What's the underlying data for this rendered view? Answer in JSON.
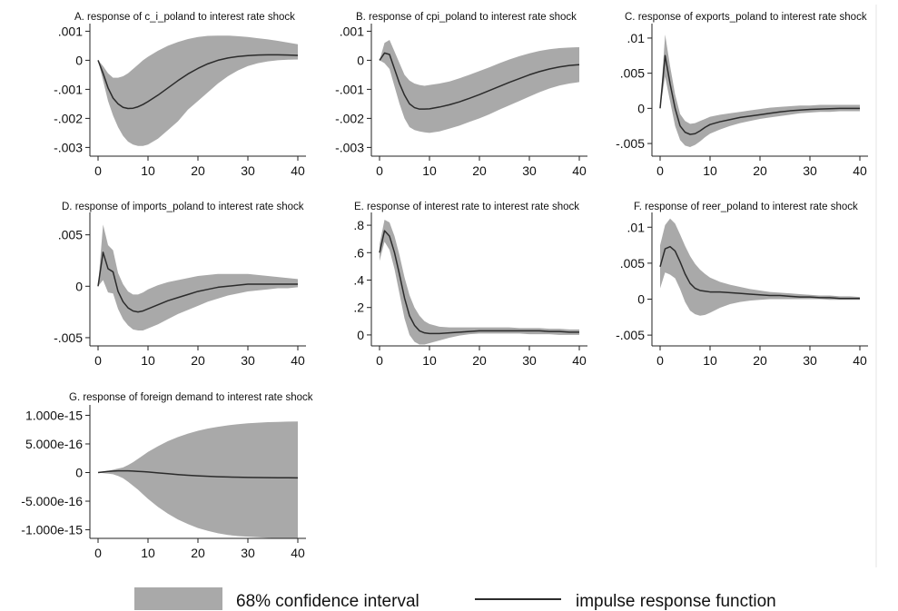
{
  "colors": {
    "band": "#a9a9a9",
    "line": "#2b2b2b",
    "axis": "#222222",
    "background": "#ffffff",
    "panel_separator": "#e6e6e6"
  },
  "legend": {
    "ci_label": "68% confidence interval",
    "irf_label": "impulse response function"
  },
  "chart_data": [
    {
      "type": "area",
      "title": "A. response of c_i_poland to interest rate shock",
      "x": [
        0,
        1,
        2,
        3,
        4,
        5,
        6,
        7,
        8,
        9,
        10,
        12,
        14,
        16,
        18,
        20,
        22,
        24,
        26,
        28,
        30,
        32,
        34,
        36,
        38,
        40
      ],
      "xticks": [
        0,
        10,
        20,
        30,
        40
      ],
      "xticklabels": [
        "0",
        "10",
        "20",
        "30",
        "40"
      ],
      "yticks": [
        -0.003,
        -0.002,
        -0.001,
        0,
        0.001
      ],
      "yticklabels": [
        "-.003",
        "-.002",
        "-.001",
        "0",
        ".001"
      ],
      "xlim": [
        0,
        40
      ],
      "ylim": [
        -0.0033,
        0.0012
      ],
      "irf": [
        0,
        -0.00045,
        -0.00095,
        -0.0013,
        -0.0015,
        -0.00162,
        -0.00166,
        -0.00165,
        -0.0016,
        -0.00152,
        -0.00142,
        -0.0012,
        -0.00095,
        -0.0007,
        -0.00047,
        -0.00028,
        -0.00012,
        0,
        8e-05,
        0.00013,
        0.00016,
        0.00018,
        0.00019,
        0.00019,
        0.00018,
        0.00017
      ],
      "ci_upper": [
        0,
        -0.0002,
        -0.00045,
        -0.0006,
        -0.0006,
        -0.00055,
        -0.00045,
        -0.0003,
        -0.00015,
        0,
        0.00012,
        0.00033,
        0.0005,
        0.00063,
        0.00073,
        0.0008,
        0.00084,
        0.00085,
        0.00085,
        0.00083,
        0.0008,
        0.00076,
        0.00072,
        0.00067,
        0.00061,
        0.00055
      ],
      "ci_lower": [
        0,
        -0.0007,
        -0.0014,
        -0.0019,
        -0.0023,
        -0.0026,
        -0.0028,
        -0.0029,
        -0.00295,
        -0.00295,
        -0.0029,
        -0.0027,
        -0.0024,
        -0.0021,
        -0.0017,
        -0.0014,
        -0.0011,
        -0.0008,
        -0.00055,
        -0.00035,
        -0.0002,
        -0.0001,
        -4e-05,
        0,
        2e-05,
        3e-05
      ]
    },
    {
      "type": "area",
      "title": "B. response of cpi_poland to interest rate shock",
      "x": [
        0,
        1,
        2,
        3,
        4,
        5,
        6,
        7,
        8,
        9,
        10,
        12,
        14,
        16,
        18,
        20,
        22,
        24,
        26,
        28,
        30,
        32,
        34,
        36,
        38,
        40
      ],
      "xticks": [
        0,
        10,
        20,
        30,
        40
      ],
      "xticklabels": [
        "0",
        "10",
        "20",
        "30",
        "40"
      ],
      "yticks": [
        -0.003,
        -0.002,
        -0.001,
        0,
        0.001
      ],
      "yticklabels": [
        "-.003",
        "-.002",
        "-.001",
        "0",
        ".001"
      ],
      "xlim": [
        0,
        40
      ],
      "ylim": [
        -0.0033,
        0.0012
      ],
      "irf": [
        0,
        0.00025,
        0.0002,
        -0.0003,
        -0.0008,
        -0.0012,
        -0.0015,
        -0.00163,
        -0.00168,
        -0.00168,
        -0.00167,
        -0.00161,
        -0.00153,
        -0.00143,
        -0.00131,
        -0.00118,
        -0.00104,
        -0.0009,
        -0.00076,
        -0.00063,
        -0.0005,
        -0.00039,
        -0.0003,
        -0.00023,
        -0.00018,
        -0.00015
      ],
      "ci_upper": [
        0,
        0.0006,
        0.0007,
        0.0003,
        -0.0001,
        -0.0005,
        -0.0007,
        -0.0008,
        -0.00085,
        -0.00088,
        -0.00085,
        -0.0008,
        -0.00073,
        -0.00062,
        -0.0005,
        -0.00037,
        -0.00024,
        -0.0001,
        3e-05,
        0.00014,
        0.00024,
        0.00032,
        0.00038,
        0.00042,
        0.00044,
        0.00045
      ],
      "ci_lower": [
        0,
        -0.0001,
        -0.0003,
        -0.0009,
        -0.0015,
        -0.002,
        -0.0023,
        -0.0024,
        -0.00245,
        -0.00248,
        -0.0025,
        -0.00245,
        -0.00235,
        -0.00225,
        -0.00212,
        -0.002,
        -0.00186,
        -0.0017,
        -0.00155,
        -0.0014,
        -0.00125,
        -0.0011,
        -0.00097,
        -0.00087,
        -0.0008,
        -0.00075
      ]
    },
    {
      "type": "area",
      "title": "C. response of exports_poland to interest rate shock",
      "x": [
        0,
        1,
        2,
        3,
        4,
        5,
        6,
        7,
        8,
        9,
        10,
        12,
        14,
        16,
        18,
        20,
        22,
        24,
        26,
        28,
        30,
        32,
        34,
        36,
        38,
        40
      ],
      "xticks": [
        0,
        10,
        20,
        30,
        40
      ],
      "xticklabels": [
        "0",
        "10",
        "20",
        "30",
        "40"
      ],
      "yticks": [
        -0.005,
        0,
        0.005,
        0.01
      ],
      "yticklabels": [
        "-.005",
        "0",
        ".005",
        ".01"
      ],
      "xlim": [
        0,
        40
      ],
      "ylim": [
        -0.0068,
        0.0118
      ],
      "irf": [
        0,
        0.0075,
        0.0035,
        0,
        -0.0025,
        -0.0034,
        -0.0037,
        -0.0036,
        -0.0032,
        -0.0027,
        -0.0023,
        -0.0019,
        -0.0016,
        -0.0013,
        -0.0011,
        -0.0009,
        -0.0007,
        -0.0005,
        -0.00035,
        -0.00025,
        -0.00015,
        -0.0001,
        -5e-05,
        0,
        0,
        0
      ],
      "ci_upper": [
        0,
        0.0105,
        0.006,
        0.002,
        -0.0008,
        -0.0018,
        -0.0022,
        -0.0021,
        -0.0018,
        -0.0015,
        -0.0012,
        -0.0009,
        -0.0007,
        -0.0005,
        -0.0003,
        -0.0001,
        0.0001,
        0.0002,
        0.0003,
        0.0004,
        0.0004,
        0.0005,
        0.0005,
        0.0005,
        0.0005,
        0.0005
      ],
      "ci_lower": [
        0,
        0.0045,
        0.001,
        -0.0025,
        -0.0045,
        -0.0053,
        -0.0055,
        -0.0052,
        -0.0047,
        -0.0041,
        -0.0036,
        -0.003,
        -0.0025,
        -0.0021,
        -0.0018,
        -0.0015,
        -0.0013,
        -0.0011,
        -0.0009,
        -0.0007,
        -0.0006,
        -0.0005,
        -0.0005,
        -0.0004,
        -0.0004,
        -0.0004
      ]
    },
    {
      "type": "area",
      "title": "D. response of imports_poland to interest rate shock",
      "x": [
        0,
        1,
        2,
        3,
        4,
        5,
        6,
        7,
        8,
        9,
        10,
        12,
        14,
        16,
        18,
        20,
        22,
        24,
        26,
        28,
        30,
        32,
        34,
        36,
        38,
        40
      ],
      "xticks": [
        0,
        10,
        20,
        30,
        40
      ],
      "xticklabels": [
        "0",
        "10",
        "20",
        "30",
        "40"
      ],
      "yticks": [
        -0.005,
        0,
        0.005
      ],
      "yticklabels": [
        "-.005",
        "0",
        ".005"
      ],
      "xlim": [
        0,
        40
      ],
      "ylim": [
        -0.0058,
        0.007
      ],
      "irf": [
        0,
        0.0033,
        0.0017,
        0.0014,
        -0.0005,
        -0.0015,
        -0.0021,
        -0.0024,
        -0.0025,
        -0.0024,
        -0.0022,
        -0.0018,
        -0.0014,
        -0.0011,
        -0.0008,
        -0.0005,
        -0.0003,
        -0.0001,
        0,
        0.0001,
        0.0002,
        0.0002,
        0.0002,
        0.0002,
        0.0002,
        0.0002
      ],
      "ci_upper": [
        0,
        0.006,
        0.004,
        0.0035,
        0.0013,
        0.0002,
        -0.0005,
        -0.0008,
        -0.0008,
        -0.0006,
        -0.0003,
        0.0001,
        0.0004,
        0.0006,
        0.0008,
        0.001,
        0.0011,
        0.0012,
        0.0012,
        0.0012,
        0.0012,
        0.0011,
        0.001,
        0.0009,
        0.0008,
        0.0007
      ],
      "ci_lower": [
        0,
        0.0006,
        -0.0006,
        -0.0007,
        -0.0022,
        -0.0032,
        -0.0038,
        -0.0042,
        -0.0043,
        -0.0043,
        -0.0041,
        -0.0037,
        -0.0032,
        -0.0027,
        -0.0023,
        -0.0019,
        -0.0015,
        -0.0012,
        -0.0009,
        -0.0007,
        -0.0005,
        -0.0004,
        -0.0003,
        -0.0002,
        -0.0002,
        -0.0001
      ]
    },
    {
      "type": "area",
      "title": "E. response of interest rate to interest rate shock",
      "x": [
        0,
        1,
        2,
        3,
        4,
        5,
        6,
        7,
        8,
        9,
        10,
        12,
        14,
        16,
        18,
        20,
        22,
        24,
        26,
        28,
        30,
        32,
        34,
        36,
        38,
        40
      ],
      "xticks": [
        0,
        10,
        20,
        30,
        40
      ],
      "xticklabels": [
        "0",
        "10",
        "20",
        "30",
        "40"
      ],
      "yticks": [
        0,
        0.2,
        0.4,
        0.6,
        0.8
      ],
      "yticklabels": [
        "0",
        ".2",
        ".4",
        ".6",
        ".8"
      ],
      "xlim": [
        0,
        40
      ],
      "ylim": [
        -0.08,
        0.88
      ],
      "irf": [
        0.6,
        0.76,
        0.72,
        0.6,
        0.44,
        0.27,
        0.14,
        0.07,
        0.03,
        0.015,
        0.01,
        0.01,
        0.015,
        0.02,
        0.025,
        0.03,
        0.03,
        0.03,
        0.03,
        0.03,
        0.03,
        0.03,
        0.025,
        0.025,
        0.02,
        0.02
      ],
      "ci_upper": [
        0.66,
        0.84,
        0.82,
        0.72,
        0.58,
        0.42,
        0.29,
        0.2,
        0.14,
        0.1,
        0.08,
        0.06,
        0.055,
        0.055,
        0.055,
        0.055,
        0.055,
        0.055,
        0.055,
        0.05,
        0.05,
        0.05,
        0.045,
        0.045,
        0.04,
        0.04
      ],
      "ci_lower": [
        0.54,
        0.68,
        0.62,
        0.48,
        0.3,
        0.12,
        0,
        -0.05,
        -0.07,
        -0.07,
        -0.06,
        -0.04,
        -0.02,
        -0.005,
        0.005,
        0.01,
        0.01,
        0.01,
        0.01,
        0.01,
        0.005,
        0.005,
        0.005,
        0,
        0,
        0
      ]
    },
    {
      "type": "area",
      "title": "F. response of reer_poland to interest rate shock",
      "x": [
        0,
        1,
        2,
        3,
        4,
        5,
        6,
        7,
        8,
        9,
        10,
        12,
        14,
        16,
        18,
        20,
        22,
        24,
        26,
        28,
        30,
        32,
        34,
        36,
        38,
        40
      ],
      "xticks": [
        0,
        10,
        20,
        30,
        40
      ],
      "xticklabels": [
        "0",
        "10",
        "20",
        "30",
        "40"
      ],
      "yticks": [
        -0.005,
        0,
        0.005,
        0.01
      ],
      "yticklabels": [
        "-.005",
        "0",
        ".005",
        ".01"
      ],
      "xlim": [
        0,
        40
      ],
      "ylim": [
        -0.0065,
        0.0118
      ],
      "irf": [
        0.0045,
        0.007,
        0.0073,
        0.0067,
        0.0052,
        0.0035,
        0.0022,
        0.0015,
        0.0012,
        0.0011,
        0.001,
        0.001,
        0.0009,
        0.0008,
        0.0007,
        0.0006,
        0.0005,
        0.0005,
        0.0004,
        0.0003,
        0.0003,
        0.0002,
        0.0002,
        0.0001,
        0.0001,
        0.0001
      ],
      "ci_upper": [
        0.0075,
        0.0103,
        0.0112,
        0.0105,
        0.009,
        0.0074,
        0.006,
        0.0049,
        0.0041,
        0.0035,
        0.003,
        0.0024,
        0.002,
        0.0017,
        0.0014,
        0.0012,
        0.001,
        0.0009,
        0.0008,
        0.0007,
        0.0006,
        0.0005,
        0.0005,
        0.0004,
        0.0004,
        0.0003
      ],
      "ci_lower": [
        0.0015,
        0.0037,
        0.0034,
        0.0029,
        0.0014,
        -0.0004,
        -0.0016,
        -0.0021,
        -0.0023,
        -0.0022,
        -0.0019,
        -0.0012,
        -0.0007,
        -0.0004,
        -0.0002,
        -0.0001,
        0,
        0,
        0,
        0,
        0,
        0,
        -0.0001,
        -0.0001,
        -0.0001,
        -0.0001
      ]
    },
    {
      "type": "area",
      "title": "G. response of foreign demand to interest rate shock",
      "x": [
        0,
        1,
        2,
        3,
        4,
        5,
        6,
        7,
        8,
        9,
        10,
        12,
        14,
        16,
        18,
        20,
        22,
        24,
        26,
        28,
        30,
        32,
        34,
        36,
        38,
        40
      ],
      "xticks": [
        0,
        10,
        20,
        30,
        40
      ],
      "xticklabels": [
        "0",
        "10",
        "20",
        "30",
        "40"
      ],
      "yticks": [
        -1e-15,
        -5e-16,
        0,
        5e-16,
        1e-15
      ],
      "yticklabels": [
        "-1.000e-15",
        "-5.000e-16",
        "0",
        "5.000e-16",
        "1.000e-15"
      ],
      "xlim": [
        0,
        40
      ],
      "ylim": [
        -1.15e-15,
        1.15e-15
      ],
      "irf": [
        0,
        1e-17,
        2e-17,
        2.5e-17,
        3e-17,
        3e-17,
        3e-17,
        2.5e-17,
        2e-17,
        1.5e-17,
        1e-17,
        -5e-18,
        -2e-17,
        -3.5e-17,
        -4.8e-17,
        -5.8e-17,
        -6.6e-17,
        -7.3e-17,
        -7.8e-17,
        -8.2e-17,
        -8.5e-17,
        -8.8e-17,
        -9e-17,
        -9.1e-17,
        -9.2e-17,
        -9.3e-17
      ],
      "ci_upper": [
        0,
        1e-17,
        3e-17,
        5e-17,
        7e-17,
        9e-17,
        1.3e-16,
        1.8e-16,
        2.4e-16,
        3e-16,
        3.6e-16,
        4.6e-16,
        5.5e-16,
        6.2e-16,
        6.8e-16,
        7.3e-16,
        7.7e-16,
        8e-16,
        8.25e-16,
        8.45e-16,
        8.6e-16,
        8.7e-16,
        8.8e-16,
        8.85e-16,
        8.9e-16,
        8.92e-16
      ],
      "ci_lower": [
        0,
        -1e-17,
        -2e-17,
        -3e-17,
        -6e-17,
        -1e-16,
        -1.6e-16,
        -2.3e-16,
        -3e-16,
        -3.8e-16,
        -4.6e-16,
        -6e-16,
        -7.2e-16,
        -8.2e-16,
        -9e-16,
        -9.7e-16,
        -1.02e-15,
        -1.06e-15,
        -1.09e-15,
        -1.11e-15,
        -1.12e-15,
        -1.13e-15,
        -1.14e-15,
        -1.145e-15,
        -1.15e-15,
        -1.15e-15
      ]
    }
  ]
}
